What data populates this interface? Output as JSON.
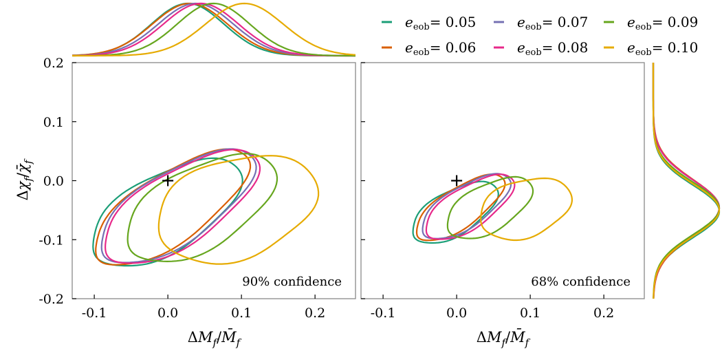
{
  "chart_data": {
    "type": "line",
    "legend_position": "top-right",
    "series": [
      {
        "name": "e_eob = 0.05",
        "param": "e",
        "subscript": "eob",
        "value_text": "= 0.05",
        "color": "#1b9e77",
        "mu_x": -0.003,
        "mu_y": -0.054,
        "sx": 0.058,
        "sy": 0.052,
        "rho": 0.6,
        "peak_x": 0.027,
        "peak_y": -0.052
      },
      {
        "name": "e_eob = 0.06",
        "param": "e",
        "subscript": "eob",
        "value_text": "= 0.06",
        "color": "#d95f02",
        "mu_x": 0.004,
        "mu_y": -0.046,
        "sx": 0.06,
        "sy": 0.056,
        "rho": 0.72,
        "peak_x": 0.03,
        "peak_y": -0.046
      },
      {
        "name": "e_eob = 0.07",
        "param": "e",
        "subscript": "eob",
        "value_text": "= 0.07",
        "color": "#7570b3",
        "mu_x": 0.012,
        "mu_y": -0.044,
        "sx": 0.06,
        "sy": 0.055,
        "rho": 0.69,
        "peak_x": 0.038,
        "peak_y": -0.046
      },
      {
        "name": "e_eob = 0.08",
        "param": "e",
        "subscript": "eob",
        "value_text": "= 0.08",
        "color": "#e7298a",
        "mu_x": 0.017,
        "mu_y": -0.045,
        "sx": 0.06,
        "sy": 0.055,
        "rho": 0.68,
        "peak_x": 0.045,
        "peak_y": -0.046
      },
      {
        "name": "e_eob = 0.09",
        "param": "e",
        "subscript": "eob",
        "value_text": "= 0.09",
        "color": "#66a61e",
        "mu_x": 0.044,
        "mu_y": -0.046,
        "sx": 0.058,
        "sy": 0.052,
        "rho": 0.55,
        "peak_x": 0.062,
        "peak_y": -0.047
      },
      {
        "name": "e_eob = 0.10",
        "param": "e",
        "subscript": "eob",
        "value_text": "= 0.10",
        "color": "#e6ab02",
        "mu_x": 0.093,
        "mu_y": -0.047,
        "sx": 0.062,
        "sy": 0.052,
        "rho": 0.3,
        "peak_x": 0.104,
        "peak_y": -0.05
      }
    ],
    "panels": [
      {
        "id": "left",
        "annotation": "90% confidence",
        "level_k": 1.75
      },
      {
        "id": "right",
        "annotation": "68% confidence",
        "level_k": 1.0
      }
    ],
    "xlim": [
      -0.13,
      0.255
    ],
    "ylim": [
      -0.2,
      0.2
    ],
    "xticks": [
      -0.1,
      0.0,
      0.1,
      0.2
    ],
    "xtick_labels": [
      "-0.1",
      "0.0",
      "0.1",
      "0.2"
    ],
    "yticks": [
      -0.2,
      -0.1,
      0.0,
      0.1,
      0.2
    ],
    "ytick_labels": [
      "-0.2",
      "-0.1",
      "0.0",
      "0.1",
      "0.2"
    ],
    "marker": {
      "x": 0.0,
      "y": 0.0,
      "symbol": "+"
    },
    "xlabel": {
      "delta": "Δ",
      "var": "M",
      "sub": "f",
      "sep": "/",
      "bar_var": "M̄",
      "bar_sub": "f"
    },
    "ylabel": {
      "delta": "Δ",
      "var": "χ",
      "sub": "f",
      "sep": "/",
      "bar_var": "χ̄",
      "bar_sub": "f"
    }
  }
}
